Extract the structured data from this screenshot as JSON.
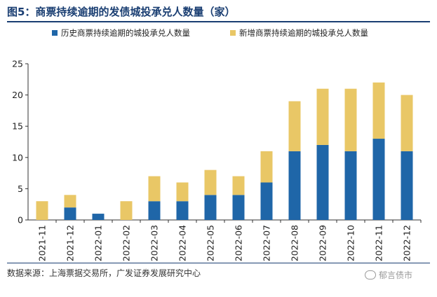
{
  "title": "图5：商票持续逾期的发债城投承兑人数量（家）",
  "source": "数据来源：上海票据交易所，广发证券发展研究中心",
  "watermark": "郁言债市",
  "colors": {
    "series1": "#1f66a8",
    "series2": "#e9c766",
    "title": "#1a3e72"
  },
  "chart_data": {
    "type": "bar",
    "stacked": true,
    "categories": [
      "2021-11",
      "2021-12",
      "2022-01",
      "2022-02",
      "2022-03",
      "2022-04",
      "2022-05",
      "2022-06",
      "2022-07",
      "2022-08",
      "2022-09",
      "2022-10",
      "2022-11",
      "2022-12"
    ],
    "series": [
      {
        "name": "历史商票持续逾期的城投承兑人数量",
        "values": [
          0,
          2,
          1,
          0,
          3,
          3,
          4,
          4,
          6,
          11,
          12,
          11,
          13,
          11
        ]
      },
      {
        "name": "新增商票持续逾期的城投承兑人数量",
        "values": [
          3,
          2,
          0,
          3,
          4,
          3,
          4,
          3,
          5,
          8,
          9,
          10,
          9,
          9
        ]
      }
    ],
    "ylim": [
      0,
      25
    ],
    "yticks": [
      0,
      5,
      10,
      15,
      20,
      25
    ],
    "legend_position": "top",
    "grid": false
  }
}
